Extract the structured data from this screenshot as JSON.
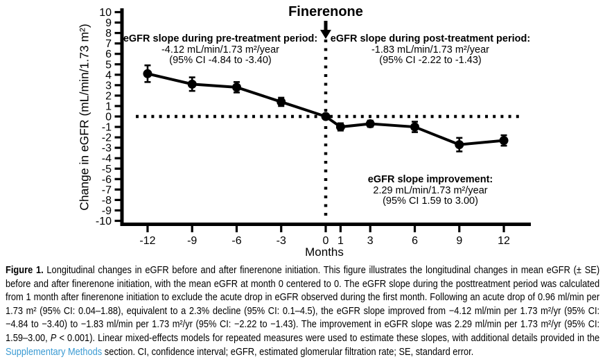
{
  "chart_data": {
    "type": "line",
    "title": "Longitudinal change in eGFR before and after finerenone initiation",
    "x": [
      -12,
      -9,
      -6,
      -3,
      0,
      1,
      3,
      6,
      9,
      12
    ],
    "xticks": [
      -12,
      -9,
      -6,
      -3,
      0,
      1,
      3,
      6,
      9,
      12
    ],
    "series": [
      {
        "name": "Mean change in eGFR ± SE",
        "values": [
          4.1,
          3.1,
          2.8,
          1.4,
          0.0,
          -1.0,
          -0.7,
          -1.0,
          -2.7,
          -2.3
        ],
        "se": [
          0.8,
          0.65,
          0.5,
          0.4,
          0.2,
          0.35,
          0.3,
          0.5,
          0.65,
          0.5
        ]
      }
    ],
    "xlabel": "Months",
    "ylabel": "Change in eGFR (mL/min/1.73 m²)",
    "ylim": [
      -10,
      10
    ],
    "ytick_step": 1,
    "grid": "off",
    "legend": "none",
    "marker_color": "#000000",
    "reference_lines": {
      "horizontal_at_y": 0,
      "vertical_at_x": 0,
      "style": "dotted"
    },
    "event_marker": {
      "x": 0,
      "label": "Finerenone"
    },
    "annotations": {
      "pre": {
        "title": "eGFR slope during pre-treatment period:",
        "value": "-4.12 mL/min/1.73 m²/year",
        "ci": "(95% CI -4.84 to -3.40)"
      },
      "post": {
        "title": "eGFR slope during post-treatment period:",
        "value": "-1.83 mL/min/1.73 m²/year",
        "ci": "(95% CI -2.22 to -1.43)"
      },
      "improvement": {
        "title": "eGFR slope improvement:",
        "value": "2.29 mL/min/1.73 m²/year",
        "ci": "(95% CI 1.59 to 3.00)"
      }
    }
  },
  "caption": {
    "label": "Figure 1.",
    "body_1": " Longitudinal changes in eGFR before and after finerenone initiation. This figure illustrates the longitudinal changes in mean eGFR (± SE) before and after finerenone initiation, with the mean eGFR at month 0 centered to 0. The eGFR slope during the posttreatment period was calculated from 1 month after finerenone initiation to exclude the acute drop in eGFR observed during the first month. Following an acute drop of 0.96 ml/min per 1.73 m² (95% CI: 0.04–1.88), equivalent to a 2.3% decline (95% CI: 0.1–4.5), the eGFR slope improved from −4.12 ml/min per 1.73 m²/yr (95% CI: −4.84 to −3.40) to −1.83 ml/min per 1.73 m²/yr (95% CI: −2.22 to −1.43). The improvement in eGFR slope was 2.29 ml/min per 1.73 m²/yr (95% CI: 1.59–3.00, ",
    "p_italic": "P",
    "body_2": " < 0.001). Linear mixed-effects models for repeated measures were used to estimate these slopes, with additional details provided in the ",
    "link": "Supplementary Methods",
    "body_3": " section. CI, confidence interval; eGFR, estimated glomerular filtration rate; SE, standard error.",
    "link_color": "#3B9BD3"
  }
}
